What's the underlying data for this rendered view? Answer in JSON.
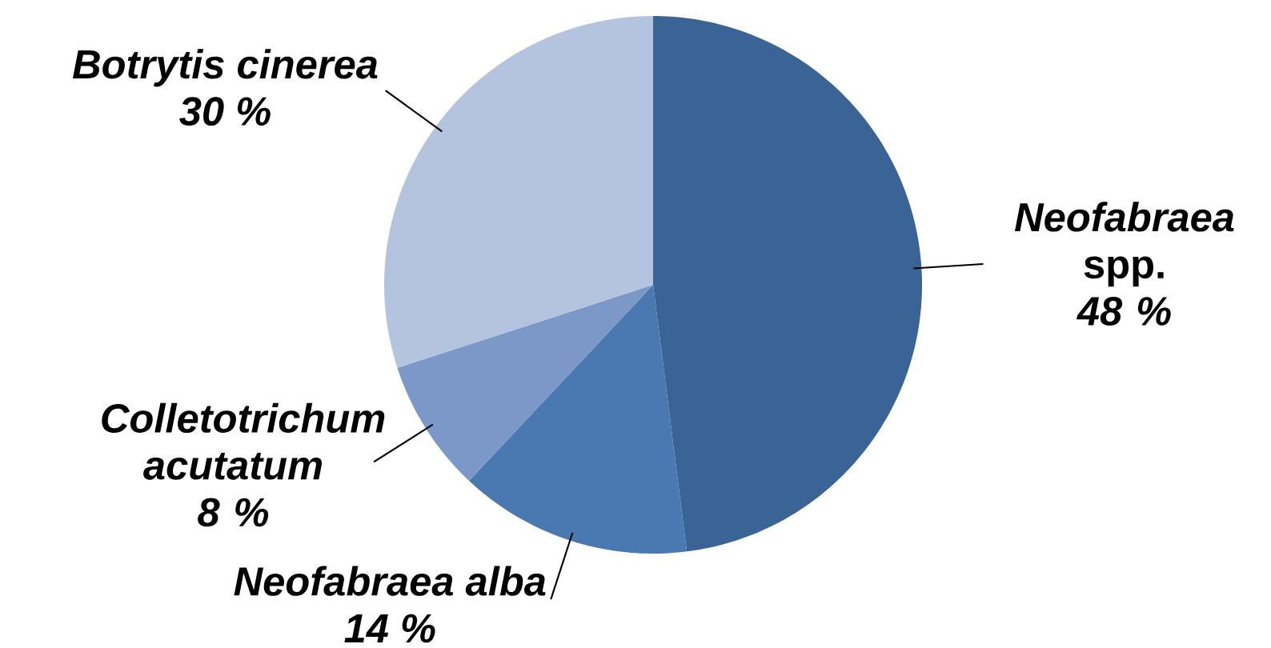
{
  "chart_data": {
    "type": "pie",
    "categories": [
      "*Neofabraea* spp.",
      "*Neofabraea alba*",
      "*Colletotrichum acutatum*",
      "*Botrytis cinerea*"
    ],
    "values": [
      48,
      14,
      8,
      30
    ],
    "value_labels": [
      "48 %",
      "14 %",
      "8 %",
      "30 %"
    ],
    "colors": [
      "#3b6496",
      "#4a79b1",
      "#7b98c8",
      "#b4c3de"
    ]
  }
}
